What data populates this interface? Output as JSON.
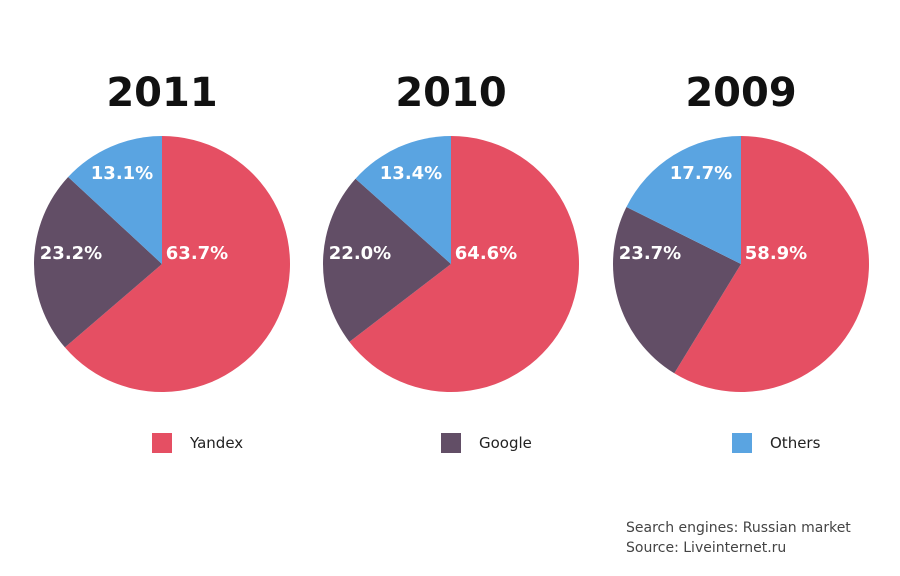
{
  "chart_data": [
    {
      "type": "pie",
      "title": "2011",
      "slices": [
        {
          "name": "Yandex",
          "value": 63.7,
          "label": "63.7%"
        },
        {
          "name": "Google",
          "value": 23.2,
          "label": "23.2%"
        },
        {
          "name": "Others",
          "value": 13.1,
          "label": "13.1%"
        }
      ]
    },
    {
      "type": "pie",
      "title": "2010",
      "slices": [
        {
          "name": "Yandex",
          "value": 64.6,
          "label": "64.6%"
        },
        {
          "name": "Google",
          "value": 22.0,
          "label": "22.0%"
        },
        {
          "name": "Others",
          "value": 13.4,
          "label": "13.4%"
        }
      ]
    },
    {
      "type": "pie",
      "title": "2009",
      "slices": [
        {
          "name": "Yandex",
          "value": 58.9,
          "label": "58.9%"
        },
        {
          "name": "Google",
          "value": 23.7,
          "label": "23.7%"
        },
        {
          "name": "Others",
          "value": 17.7,
          "label": "17.7%"
        }
      ]
    }
  ],
  "legend": {
    "items": [
      {
        "name": "Yandex",
        "color": "#e54f63"
      },
      {
        "name": "Google",
        "color": "#624e66"
      },
      {
        "name": "Others",
        "color": "#5aa4e1"
      }
    ],
    "placement": "bottom"
  },
  "source": {
    "line1": "Search engines: Russian market",
    "line2": "Source: Liveinternet.ru"
  }
}
